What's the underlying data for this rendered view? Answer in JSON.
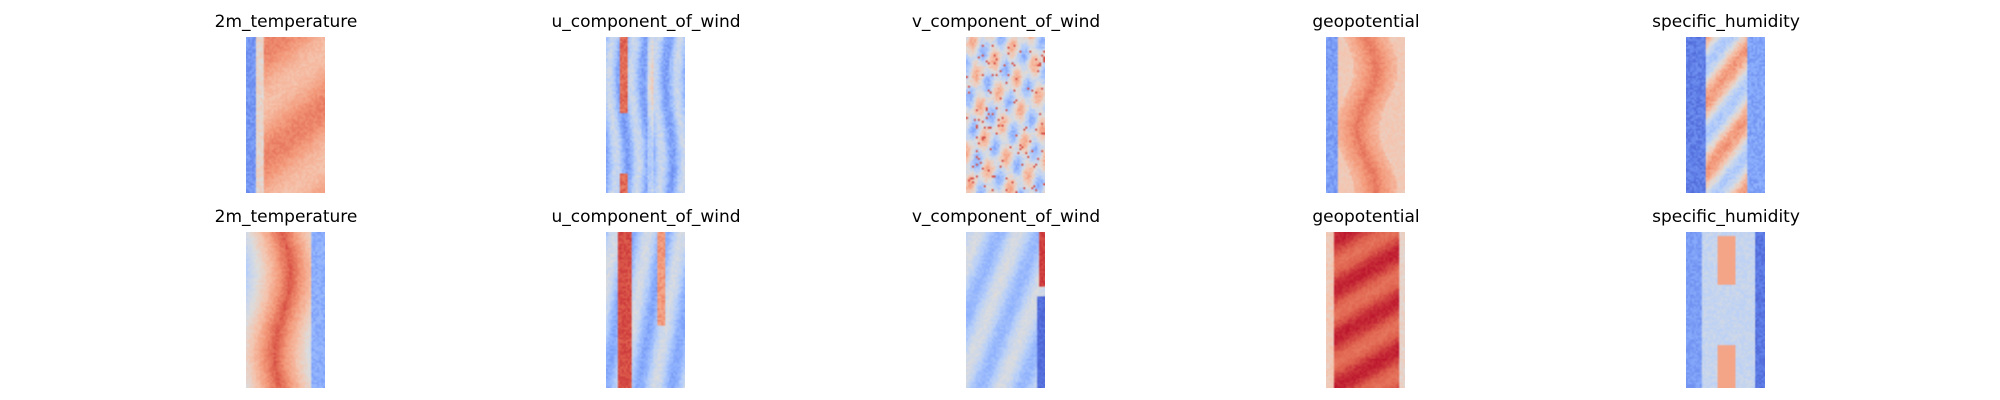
{
  "chart_data": {
    "type": "heatmap",
    "colormap": "coolwarm",
    "axes": "off",
    "rows": 2,
    "columns": 5,
    "panels": [
      {
        "title": "2m_temperature",
        "pattern": "warm_band_left",
        "level": 0.75,
        "contrast": 0.35
      },
      {
        "title": "u_component_of_wind",
        "pattern": "streaks",
        "level": 0.35,
        "contrast": 0.45
      },
      {
        "title": "v_component_of_wind",
        "pattern": "speckle",
        "level": 0.5,
        "contrast": 0.4
      },
      {
        "title": "geopotential",
        "pattern": "warm_band_wavy",
        "level": 0.72,
        "contrast": 0.4
      },
      {
        "title": "specific_humidity",
        "pattern": "cool_band_center",
        "level": 0.3,
        "contrast": 0.45
      },
      {
        "title": "2m_temperature",
        "pattern": "warm_band_wide",
        "level": 0.72,
        "contrast": 0.4
      },
      {
        "title": "u_component_of_wind",
        "pattern": "red_streak_left",
        "level": 0.4,
        "contrast": 0.5
      },
      {
        "title": "v_component_of_wind",
        "pattern": "cool_with_red_edge",
        "level": 0.38,
        "contrast": 0.35
      },
      {
        "title": "geopotential",
        "pattern": "hot_band",
        "level": 0.82,
        "contrast": 0.3
      },
      {
        "title": "specific_humidity",
        "pattern": "cool_band_orange",
        "level": 0.35,
        "contrast": 0.4
      }
    ]
  }
}
